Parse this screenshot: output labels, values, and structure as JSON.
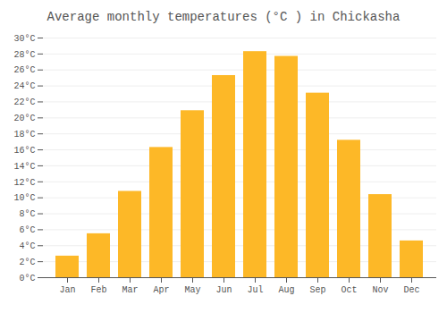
{
  "chart_data": {
    "type": "bar",
    "title": "Average monthly temperatures (°C ) in Chickasha",
    "categories": [
      "Jan",
      "Feb",
      "Mar",
      "Apr",
      "May",
      "Jun",
      "Jul",
      "Aug",
      "Sep",
      "Oct",
      "Nov",
      "Dec"
    ],
    "values": [
      2.7,
      5.5,
      10.8,
      16.3,
      20.9,
      25.3,
      28.3,
      27.7,
      23.1,
      17.2,
      10.4,
      4.6
    ],
    "color": "#FDB827",
    "ylim": [
      0,
      30
    ],
    "yticks": [
      {
        "value": 0,
        "label": "0°C"
      },
      {
        "value": 2,
        "label": "2°C"
      },
      {
        "value": 4,
        "label": "4°C"
      },
      {
        "value": 6,
        "label": "6°C"
      },
      {
        "value": 8,
        "label": "8°C"
      },
      {
        "value": 10,
        "label": "10°C"
      },
      {
        "value": 12,
        "label": "12°C"
      },
      {
        "value": 14,
        "label": "14°C"
      },
      {
        "value": 16,
        "label": "16°C"
      },
      {
        "value": 18,
        "label": "18°C"
      },
      {
        "value": 20,
        "label": "20°C"
      },
      {
        "value": 22,
        "label": "22°C"
      },
      {
        "value": 24,
        "label": "24°C"
      },
      {
        "value": 26,
        "label": "26°C"
      },
      {
        "value": 28,
        "label": "28°C"
      },
      {
        "value": 30,
        "label": "30°C"
      }
    ],
    "grid": true
  }
}
